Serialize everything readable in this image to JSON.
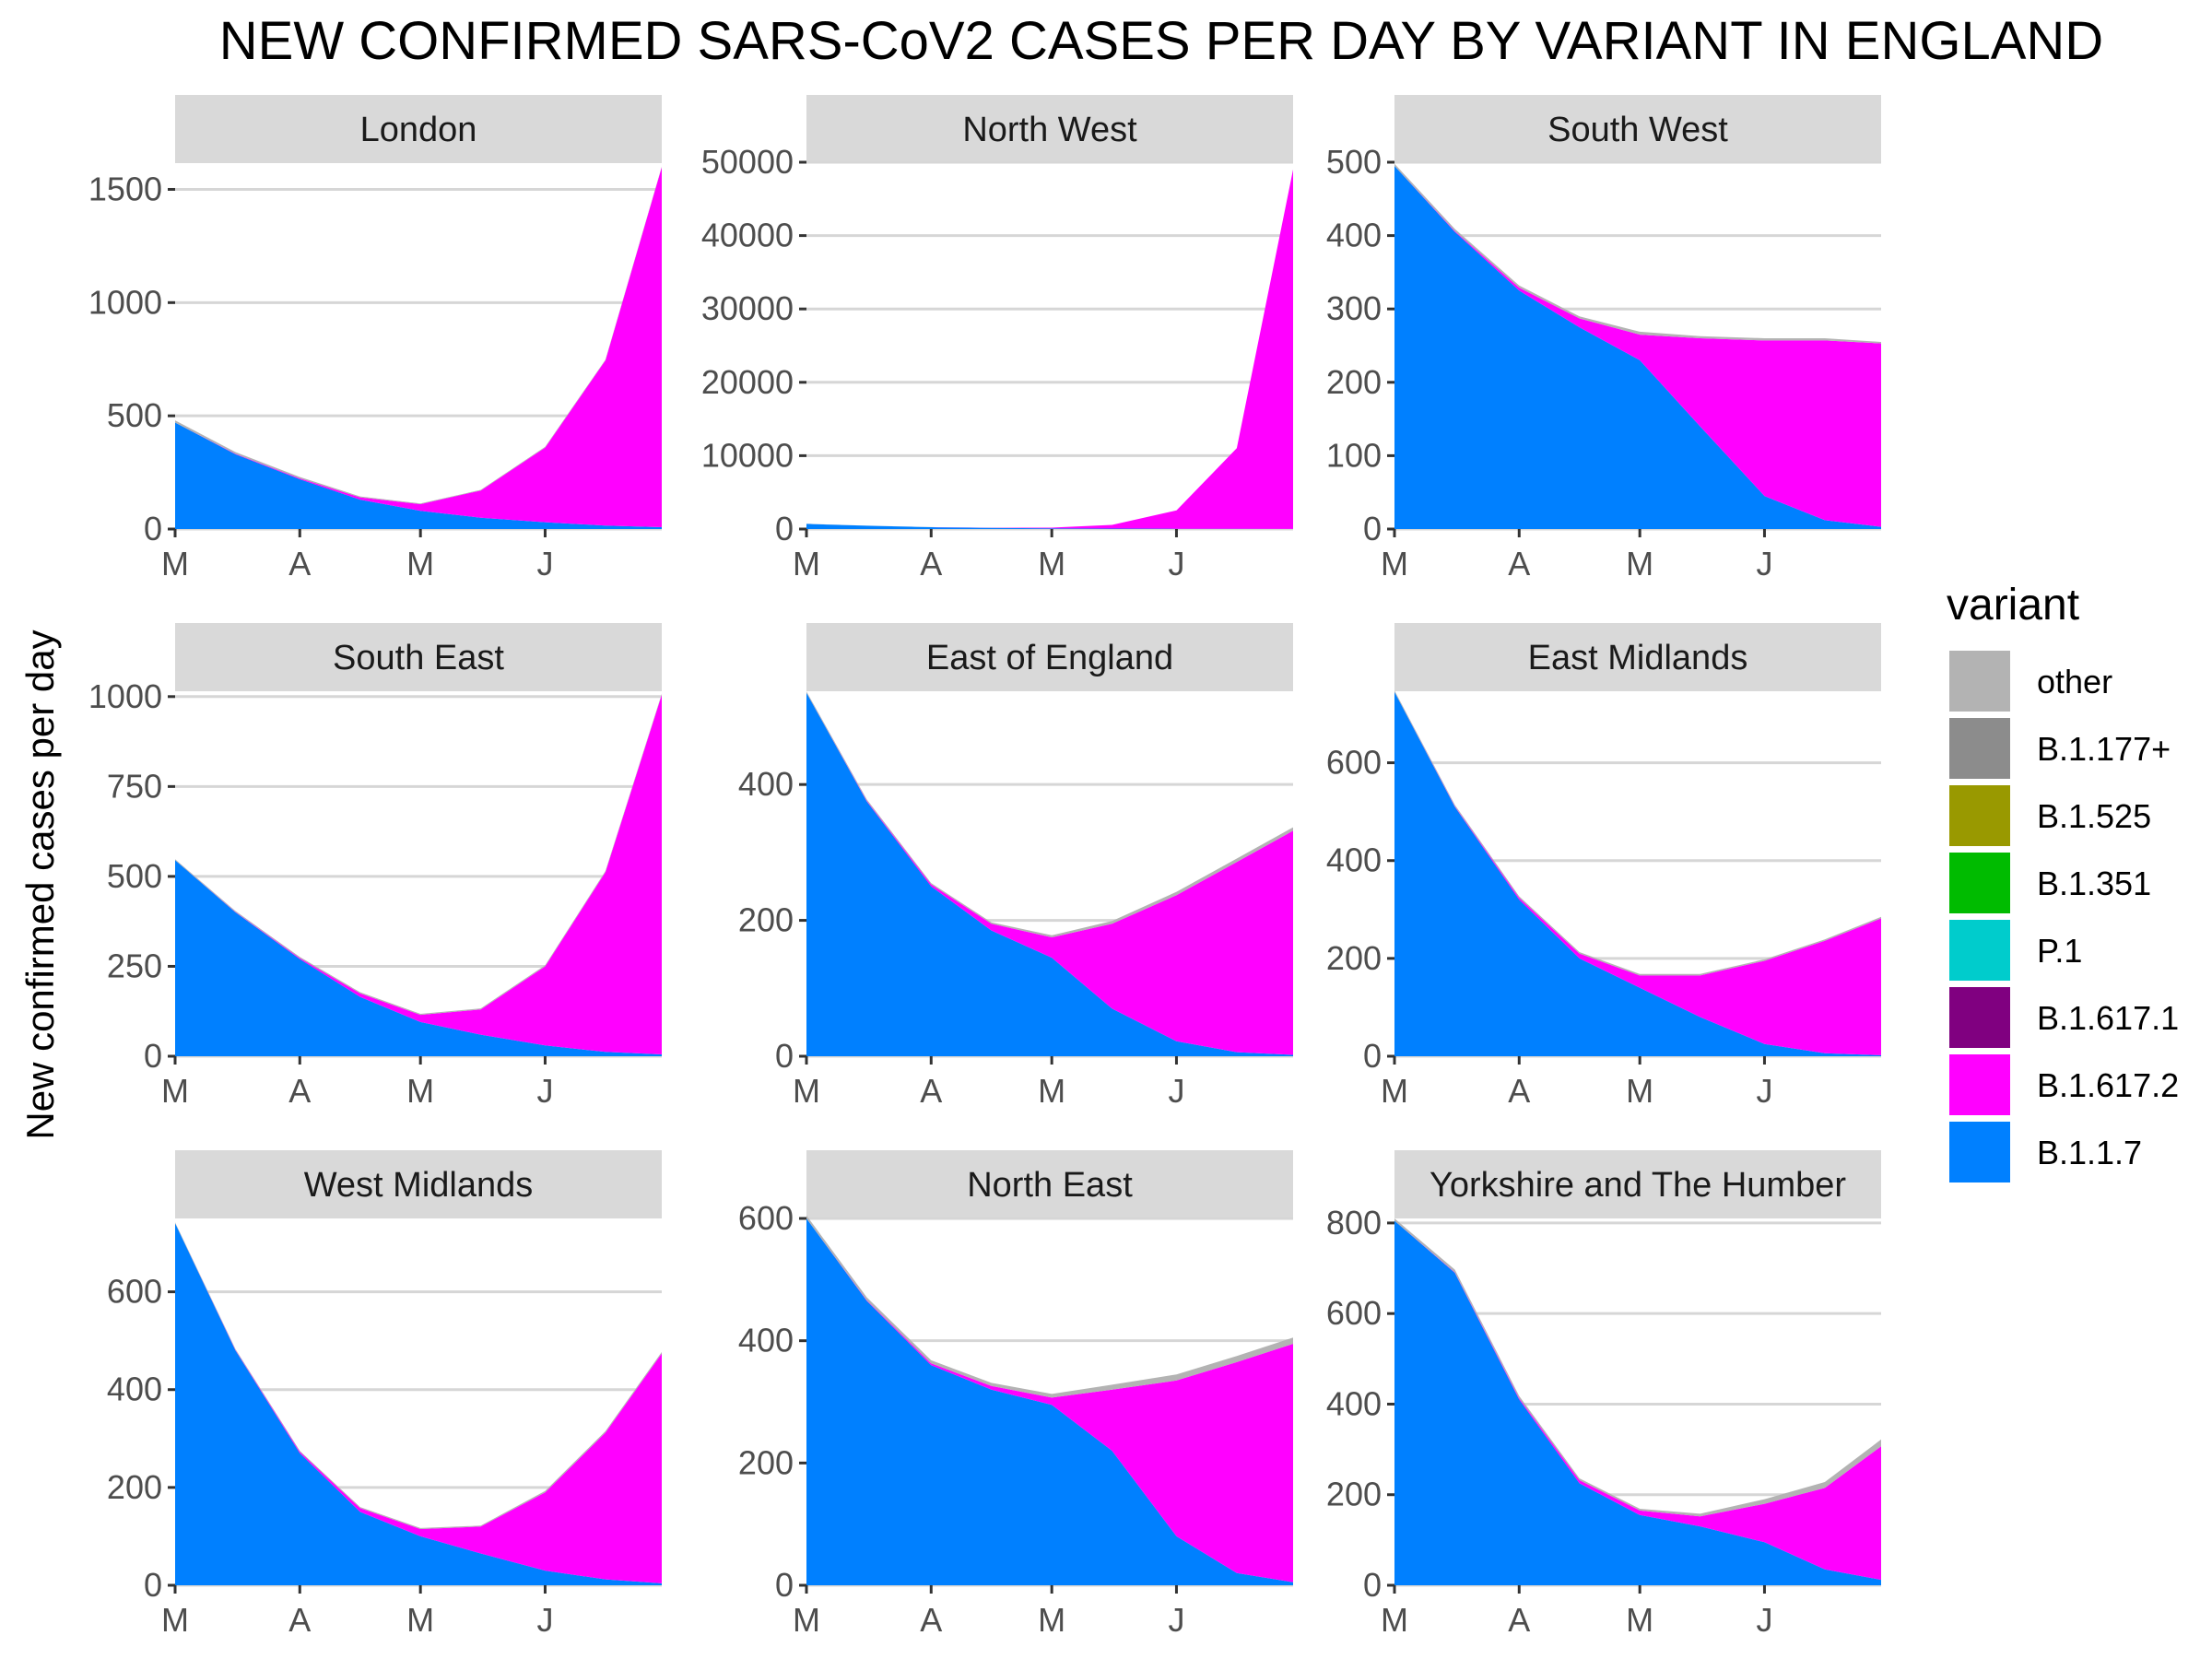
{
  "chart_data": {
    "type": "area",
    "title": "NEW CONFIRMED SARS-CoV2 CASES PER DAY BY VARIANT IN ENGLAND",
    "ylabel": "New confirmed cases per day",
    "xlabel": "",
    "legend": {
      "title": "variant",
      "placement": "right",
      "entries": [
        {
          "name": "other",
          "color": "#b3b3b3"
        },
        {
          "name": "B.1.177+",
          "color": "#8c8c8c"
        },
        {
          "name": "B.1.525",
          "color": "#999900"
        },
        {
          "name": "B.1.351",
          "color": "#00bb00"
        },
        {
          "name": "P.1",
          "color": "#00cccc"
        },
        {
          "name": "B.1.617.1",
          "color": "#800080"
        },
        {
          "name": "B.1.617.2",
          "color": "#ff00ff"
        },
        {
          "name": "B.1.1.7",
          "color": "#0080ff"
        }
      ]
    },
    "grid": true,
    "x": [
      "2021-03-01",
      "2021-03-16",
      "2021-04-01",
      "2021-04-16",
      "2021-05-01",
      "2021-05-16",
      "2021-06-01",
      "2021-06-16",
      "2021-06-30"
    ],
    "x_range": [
      "2021-03-01",
      "2021-06-30"
    ],
    "x_ticks": [
      {
        "date": "2021-03-01",
        "label": "M"
      },
      {
        "date": "2021-04-01",
        "label": "A"
      },
      {
        "date": "2021-05-01",
        "label": "M"
      },
      {
        "date": "2021-06-01",
        "label": "J"
      }
    ],
    "panels": [
      {
        "region": "London",
        "ylim": [
          0,
          1620
        ],
        "y_ticks": [
          0,
          500,
          1000,
          1500
        ],
        "series": [
          {
            "name": "B.1.1.7",
            "values": [
              470,
              330,
              220,
              130,
              80,
              50,
              30,
              15,
              8
            ]
          },
          {
            "name": "B.1.617.2",
            "values": [
              0,
              2,
              4,
              10,
              30,
              120,
              330,
              730,
              1590
            ]
          },
          {
            "name": "other",
            "values": [
              10,
              8,
              6,
              4,
              3,
              3,
              3,
              3,
              3
            ]
          }
        ]
      },
      {
        "region": "North West",
        "ylim": [
          0,
          50000
        ],
        "y_ticks": [
          0,
          10000,
          20000,
          30000,
          40000,
          50000
        ],
        "series": [
          {
            "name": "B.1.1.7",
            "values": [
              700,
              450,
              250,
              150,
              90,
              60,
              40,
              20,
              10
            ]
          },
          {
            "name": "B.1.617.2",
            "values": [
              0,
              0,
              5,
              20,
              100,
              500,
              2500,
              11000,
              49000
            ]
          },
          {
            "name": "other",
            "values": [
              10,
              8,
              6,
              4,
              3,
              3,
              3,
              3,
              3
            ]
          }
        ]
      },
      {
        "region": "South West",
        "ylim": [
          0,
          500
        ],
        "y_ticks": [
          0,
          100,
          200,
          300,
          400,
          500
        ],
        "series": [
          {
            "name": "B.1.1.7",
            "values": [
              495,
              405,
              325,
              275,
              230,
              140,
              45,
              12,
              3
            ]
          },
          {
            "name": "B.1.617.2",
            "values": [
              0,
              1,
              4,
              12,
              35,
              120,
              212,
              245,
              250
            ]
          },
          {
            "name": "other",
            "values": [
              3,
              3,
              3,
              3,
              4,
              3,
              3,
              3,
              2
            ]
          }
        ]
      },
      {
        "region": "South East",
        "ylim": [
          0,
          1020
        ],
        "y_ticks": [
          0,
          250,
          500,
          750,
          1000
        ],
        "series": [
          {
            "name": "B.1.1.7",
            "values": [
              545,
              400,
              270,
              165,
              95,
              60,
              30,
              12,
              5
            ]
          },
          {
            "name": "B.1.617.2",
            "values": [
              0,
              1,
              3,
              10,
              20,
              70,
              220,
              500,
              1000
            ]
          },
          {
            "name": "other",
            "values": [
              3,
              3,
              3,
              3,
              3,
              3,
              3,
              3,
              3
            ]
          }
        ]
      },
      {
        "region": "East of England",
        "ylim": [
          0,
          540
        ],
        "y_ticks": [
          0,
          200,
          400
        ],
        "series": [
          {
            "name": "B.1.1.7",
            "values": [
              535,
              375,
              250,
              185,
              145,
              70,
              22,
              6,
              2
            ]
          },
          {
            "name": "B.1.617.2",
            "values": [
              0,
              1,
              3,
              10,
              30,
              125,
              215,
              280,
              330
            ]
          },
          {
            "name": "other",
            "values": [
              2,
              2,
              2,
              2,
              3,
              4,
              5,
              5,
              5
            ]
          }
        ]
      },
      {
        "region": "East Midlands",
        "ylim": [
          0,
          750
        ],
        "y_ticks": [
          0,
          200,
          400,
          600
        ],
        "series": [
          {
            "name": "B.1.1.7",
            "values": [
              745,
              510,
              320,
              200,
              140,
              80,
              25,
              6,
              2
            ]
          },
          {
            "name": "B.1.617.2",
            "values": [
              0,
              1,
              4,
              10,
              25,
              85,
              170,
              230,
              280
            ]
          },
          {
            "name": "other",
            "values": [
              3,
              3,
              3,
              3,
              3,
              3,
              3,
              3,
              3
            ]
          }
        ]
      },
      {
        "region": "West Midlands",
        "ylim": [
          0,
          750
        ],
        "y_ticks": [
          0,
          200,
          400,
          600
        ],
        "series": [
          {
            "name": "B.1.1.7",
            "values": [
              740,
              480,
              270,
              150,
              100,
              65,
              30,
              12,
              4
            ]
          },
          {
            "name": "B.1.617.2",
            "values": [
              0,
              1,
              3,
              8,
              15,
              55,
              160,
              300,
              470
            ]
          },
          {
            "name": "other",
            "values": [
              2,
              2,
              2,
              2,
              2,
              2,
              3,
              3,
              3
            ]
          }
        ]
      },
      {
        "region": "North East",
        "ylim": [
          0,
          600
        ],
        "y_ticks": [
          0,
          200,
          400,
          600
        ],
        "series": [
          {
            "name": "B.1.1.7",
            "values": [
              600,
              465,
              360,
              320,
              295,
              220,
              80,
              20,
              5
            ]
          },
          {
            "name": "B.1.617.2",
            "values": [
              0,
              1,
              3,
              6,
              12,
              100,
              255,
              345,
              390
            ]
          },
          {
            "name": "other",
            "values": [
              5,
              5,
              5,
              5,
              6,
              8,
              10,
              10,
              10
            ]
          }
        ]
      },
      {
        "region": "Yorkshire and The Humber",
        "ylim": [
          0,
          810
        ],
        "y_ticks": [
          0,
          200,
          400,
          600,
          800
        ],
        "series": [
          {
            "name": "B.1.1.7",
            "values": [
              805,
              690,
              410,
              225,
              155,
              130,
              95,
              35,
              12
            ]
          },
          {
            "name": "B.1.617.2",
            "values": [
              0,
              1,
              3,
              7,
              10,
              22,
              85,
              180,
              295
            ]
          },
          {
            "name": "other",
            "values": [
              5,
              6,
              5,
              4,
              4,
              6,
              10,
              13,
              15
            ]
          }
        ]
      }
    ]
  }
}
